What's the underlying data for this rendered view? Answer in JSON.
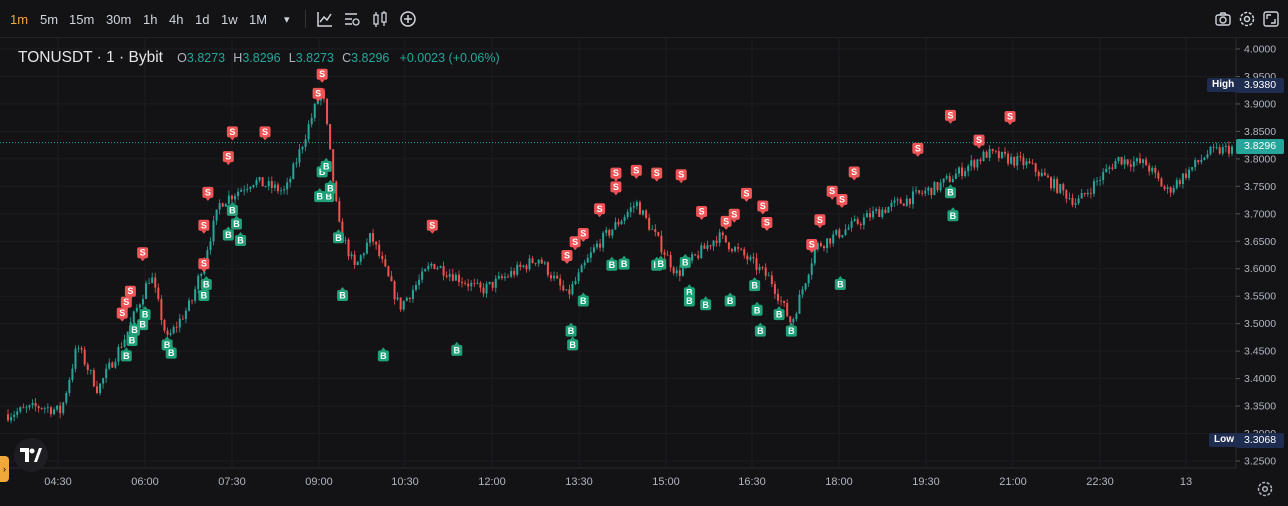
{
  "toolbar": {
    "timeframes": [
      "1m",
      "5m",
      "15m",
      "30m",
      "1h",
      "4h",
      "1d",
      "1w",
      "1M"
    ],
    "active_timeframe": "1m",
    "dropdown_glyph": "▾"
  },
  "legend": {
    "symbol": "TONUSDT · 1 · Bybit",
    "open_label": "O",
    "open": "3.8273",
    "high_label": "H",
    "high": "3.8296",
    "low_label": "L",
    "low": "3.8273",
    "close_label": "C",
    "close": "3.8296",
    "change": "+0.0023 (+0.06%)"
  },
  "price_axis": {
    "ticks": [
      "4.0000",
      "3.9500",
      "3.9000",
      "3.8500",
      "3.8000",
      "3.7500",
      "3.7000",
      "3.6500",
      "3.6000",
      "3.5500",
      "3.5000",
      "3.4500",
      "3.4000",
      "3.3500",
      "3.3000",
      "3.2500"
    ],
    "current_price": "3.8296",
    "high_tag": "High",
    "high_value": "3.9380",
    "low_tag": "Low",
    "low_value": "3.3068"
  },
  "time_axis": {
    "ticks": [
      "04:30",
      "06:00",
      "07:30",
      "09:00",
      "10:30",
      "12:00",
      "13:30",
      "15:00",
      "16:30",
      "18:00",
      "19:30",
      "21:00",
      "22:30",
      "13"
    ]
  },
  "signals": {
    "sell_label": "S",
    "buy_label": "B"
  },
  "colors": {
    "up": "#26a69a",
    "down": "#ef5350",
    "accent": "#f0a83a",
    "sell_badge": "#f05456",
    "buy_badge": "#1fa178"
  },
  "chart_data": {
    "type": "candlestick",
    "symbol": "TONUSDT",
    "interval": "1",
    "exchange": "Bybit",
    "ylim": [
      3.25,
      4.0
    ],
    "x_ticks": [
      "04:30",
      "06:00",
      "07:30",
      "09:00",
      "10:30",
      "12:00",
      "13:30",
      "15:00",
      "16:30",
      "18:00",
      "19:30",
      "21:00",
      "22:30",
      "13"
    ],
    "price_path": [
      [
        0.0,
        3.335
      ],
      [
        0.04,
        3.35
      ],
      [
        0.065,
        3.34
      ],
      [
        0.085,
        3.46
      ],
      [
        0.11,
        3.38
      ],
      [
        0.145,
        3.48
      ],
      [
        0.175,
        3.59
      ],
      [
        0.195,
        3.47
      ],
      [
        0.225,
        3.54
      ],
      [
        0.26,
        3.72
      ],
      [
        0.3,
        3.76
      ],
      [
        0.34,
        3.74
      ],
      [
        0.385,
        3.93
      ],
      [
        0.405,
        3.68
      ],
      [
        0.425,
        3.6
      ],
      [
        0.445,
        3.66
      ],
      [
        0.48,
        3.53
      ],
      [
        0.52,
        3.61
      ],
      [
        0.58,
        3.56
      ],
      [
        0.65,
        3.62
      ],
      [
        0.685,
        3.55
      ],
      [
        0.72,
        3.64
      ],
      [
        0.77,
        3.72
      ],
      [
        0.82,
        3.59
      ],
      [
        0.87,
        3.66
      ],
      [
        0.905,
        3.62
      ],
      [
        0.935,
        3.58
      ],
      [
        0.96,
        3.5
      ],
      [
        0.99,
        3.64
      ],
      [
        1.06,
        3.7
      ],
      [
        1.14,
        3.75
      ],
      [
        1.2,
        3.81
      ],
      [
        1.25,
        3.79
      ],
      [
        1.31,
        3.72
      ],
      [
        1.36,
        3.8
      ],
      [
        1.395,
        3.79
      ],
      [
        1.42,
        3.74
      ],
      [
        1.47,
        3.81
      ],
      [
        1.5,
        3.82
      ]
    ],
    "high": 3.938,
    "low": 3.3068,
    "last": 3.8296,
    "sell_signals": [
      [
        0.14,
        3.5
      ],
      [
        0.145,
        3.52
      ],
      [
        0.15,
        3.54
      ],
      [
        0.165,
        3.61
      ],
      [
        0.24,
        3.59
      ],
      [
        0.24,
        3.66
      ],
      [
        0.245,
        3.72
      ],
      [
        0.27,
        3.785
      ],
      [
        0.275,
        3.83
      ],
      [
        0.315,
        3.83
      ],
      [
        0.38,
        3.9
      ],
      [
        0.385,
        3.935
      ],
      [
        0.52,
        3.66
      ],
      [
        0.685,
        3.605
      ],
      [
        0.695,
        3.63
      ],
      [
        0.705,
        3.645
      ],
      [
        0.725,
        3.69
      ],
      [
        0.745,
        3.73
      ],
      [
        0.745,
        3.755
      ],
      [
        0.77,
        3.76
      ],
      [
        0.795,
        3.755
      ],
      [
        0.825,
        3.752
      ],
      [
        0.85,
        3.685
      ],
      [
        0.88,
        3.667
      ],
      [
        0.89,
        3.68
      ],
      [
        0.905,
        3.718
      ],
      [
        0.925,
        3.695
      ],
      [
        0.93,
        3.665
      ],
      [
        0.985,
        3.625
      ],
      [
        0.995,
        3.67
      ],
      [
        1.01,
        3.722
      ],
      [
        1.022,
        3.707
      ],
      [
        1.037,
        3.757
      ],
      [
        1.115,
        3.8
      ],
      [
        1.155,
        3.86
      ],
      [
        1.19,
        3.815
      ],
      [
        1.228,
        3.858
      ]
    ],
    "buy_signals": [
      [
        0.145,
        3.455
      ],
      [
        0.152,
        3.483
      ],
      [
        0.155,
        3.502
      ],
      [
        0.165,
        3.512
      ],
      [
        0.168,
        3.53
      ],
      [
        0.195,
        3.475
      ],
      [
        0.2,
        3.46
      ],
      [
        0.24,
        3.565
      ],
      [
        0.243,
        3.585
      ],
      [
        0.27,
        3.675
      ],
      [
        0.275,
        3.72
      ],
      [
        0.28,
        3.695
      ],
      [
        0.285,
        3.665
      ],
      [
        0.382,
        3.745
      ],
      [
        0.385,
        3.79
      ],
      [
        0.39,
        3.8
      ],
      [
        0.393,
        3.745
      ],
      [
        0.395,
        3.76
      ],
      [
        0.405,
        3.67
      ],
      [
        0.41,
        3.565
      ],
      [
        0.46,
        3.455
      ],
      [
        0.55,
        3.465
      ],
      [
        0.69,
        3.5
      ],
      [
        0.692,
        3.475
      ],
      [
        0.705,
        3.555
      ],
      [
        0.74,
        3.62
      ],
      [
        0.755,
        3.622
      ],
      [
        0.795,
        3.62
      ],
      [
        0.8,
        3.622
      ],
      [
        0.83,
        3.625
      ],
      [
        0.835,
        3.57
      ],
      [
        0.835,
        3.555
      ],
      [
        0.855,
        3.548
      ],
      [
        0.885,
        3.555
      ],
      [
        0.915,
        3.583
      ],
      [
        0.918,
        3.538
      ],
      [
        0.922,
        3.5
      ],
      [
        0.945,
        3.53
      ],
      [
        0.96,
        3.5
      ],
      [
        1.02,
        3.585
      ],
      [
        1.155,
        3.752
      ],
      [
        1.158,
        3.71
      ]
    ]
  }
}
